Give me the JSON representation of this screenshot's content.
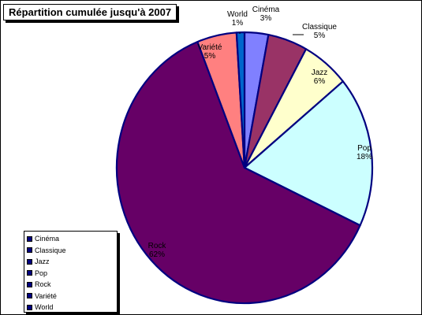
{
  "chart_data": {
    "type": "pie",
    "title": "Répartition cumulée jusqu'à 2007",
    "legend": "bottom-left",
    "slices": [
      {
        "name": "Cinéma",
        "value": 3,
        "label": "3%",
        "color": "#8080ff"
      },
      {
        "name": "Classique",
        "value": 5,
        "label": "5%",
        "color": "#993366"
      },
      {
        "name": "Jazz",
        "value": 6,
        "label": "6%",
        "color": "#ffffcc"
      },
      {
        "name": "Pop",
        "value": 18,
        "label": "18%",
        "color": "#ccffff"
      },
      {
        "name": "Rock",
        "value": 62,
        "label": "62%",
        "color": "#660066"
      },
      {
        "name": "Variété",
        "value": 5,
        "label": "5%",
        "color": "#ff8080"
      },
      {
        "name": "World",
        "value": 1,
        "label": "1%",
        "color": "#0066cc"
      }
    ],
    "edge_color": "#000080",
    "legend_swatch_color": "#000080"
  }
}
